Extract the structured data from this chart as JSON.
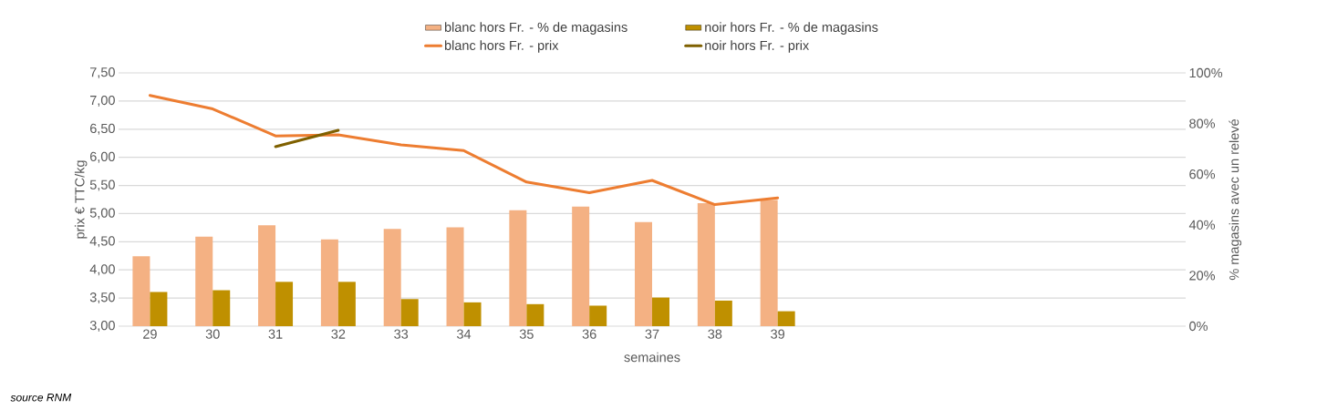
{
  "chart_data": {
    "type": "bar",
    "xlabel": "semaines",
    "ylabel": "prix € TTC/kg",
    "y2label": "% magasins avec un relevé",
    "categories": [
      "29",
      "30",
      "31",
      "32",
      "33",
      "34",
      "35",
      "36",
      "37",
      "38",
      "39",
      null,
      null,
      null,
      null,
      null,
      null
    ],
    "series": [
      {
        "name": "blanc hors Fr. - % de magasins",
        "axis": "y2",
        "color": "#f4b183",
        "values": [
          27.6,
          35.3,
          39.8,
          34.3,
          38.4,
          39.0,
          45.8,
          47.2,
          41.1,
          48.6,
          49.8,
          null,
          null,
          null,
          null,
          null,
          null
        ]
      },
      {
        "name": "noir hors Fr. - % de magasins",
        "axis": "y2",
        "color": "#bf9000",
        "values": [
          13.5,
          14.2,
          17.5,
          17.5,
          10.7,
          9.4,
          8.7,
          8.1,
          11.3,
          10.1,
          5.9,
          null,
          null,
          null,
          null,
          null,
          null
        ]
      },
      {
        "name": "blanc hors Fr. - prix",
        "type": "line",
        "color": "#ed7d31",
        "values": [
          7.1,
          6.86,
          6.38,
          6.4,
          6.22,
          6.12,
          5.56,
          5.37,
          5.59,
          5.16,
          5.28,
          null,
          null,
          null,
          null,
          null,
          null
        ]
      },
      {
        "name": "noir hors Fr. - prix",
        "type": "line",
        "color": "#7f6000",
        "values": [
          null,
          null,
          6.19,
          6.48,
          null,
          null,
          null,
          null,
          null,
          null,
          null,
          null,
          null,
          null,
          null,
          null,
          null
        ]
      }
    ],
    "ylim": [
      3,
      7.5
    ],
    "yticks": [
      {
        "value": 3,
        "label": "3,00"
      },
      {
        "value": 3.5,
        "label": "3,50"
      },
      {
        "value": 4,
        "label": "4,00"
      },
      {
        "value": 4.5,
        "label": "4,50"
      },
      {
        "value": 5,
        "label": "5,00"
      },
      {
        "value": 5.5,
        "label": "5,50"
      },
      {
        "value": 6,
        "label": "6,00"
      },
      {
        "value": 6.5,
        "label": "6,50"
      },
      {
        "value": 7,
        "label": "7,00"
      },
      {
        "value": 7.5,
        "label": "7,50"
      }
    ],
    "y2lim": [
      0,
      100
    ],
    "y2ticks": [
      {
        "value": 0,
        "label": "0%"
      },
      {
        "value": 20,
        "label": "20%"
      },
      {
        "value": 40,
        "label": "40%"
      },
      {
        "value": 60,
        "label": "60%"
      },
      {
        "value": 80,
        "label": "80%"
      },
      {
        "value": 100,
        "label": "100%"
      }
    ],
    "grid": "y",
    "legend": "top",
    "annotations": [
      "source RNM"
    ]
  }
}
